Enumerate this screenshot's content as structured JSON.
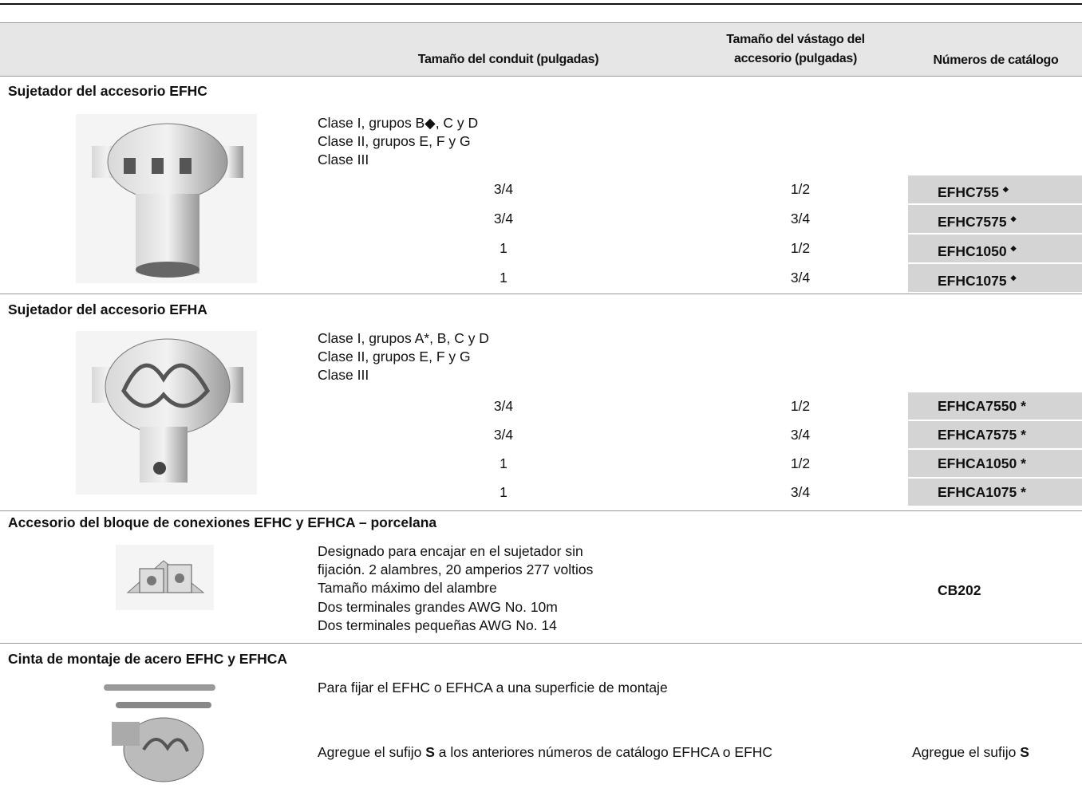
{
  "header": {
    "conduit": "Tamaño del conduit (pulgadas)",
    "stem": [
      "Tamaño del vástago del",
      "accesorio (pulgadas)"
    ],
    "catalog": "Números de catálogo"
  },
  "sections": [
    {
      "title": "Sujetador del accesorio EFHC",
      "description": [
        "Clase I, grupos B◆, C y D",
        "Clase II, grupos E, F y G",
        "Clase III"
      ],
      "rows": [
        {
          "conduit": "3/4",
          "stem": "1/2",
          "catalog": "EFHC755",
          "mark": "◆"
        },
        {
          "conduit": "3/4",
          "stem": "3/4",
          "catalog": "EFHC7575",
          "mark": "◆"
        },
        {
          "conduit": "1",
          "stem": "1/2",
          "catalog": "EFHC1050",
          "mark": "◆"
        },
        {
          "conduit": "1",
          "stem": "3/4",
          "catalog": "EFHC1075",
          "mark": "◆"
        }
      ]
    },
    {
      "title": "Sujetador del accesorio EFHA",
      "description": [
        "Clase I, grupos A*, B, C y D",
        "Clase II, grupos E, F y G",
        "Clase III"
      ],
      "rows": [
        {
          "conduit": "3/4",
          "stem": "1/2",
          "catalog": "EFHCA7550 *"
        },
        {
          "conduit": "3/4",
          "stem": "3/4",
          "catalog": "EFHCA7575 *"
        },
        {
          "conduit": "1",
          "stem": "1/2",
          "catalog": "EFHCA1050 *"
        },
        {
          "conduit": "1",
          "stem": "3/4",
          "catalog": "EFHCA1075 *"
        }
      ]
    },
    {
      "title": "Accesorio del bloque de conexiones EFHC y EFHCA – porcelana",
      "description": [
        "Designado para encajar en el sujetador sin",
        "fijación. 2 alambres, 20 amperios 277 voltios",
        "Tamaño máximo del alambre",
        "Dos terminales grandes AWG No. 10m",
        "Dos terminales pequeñas AWG No. 14"
      ],
      "catalog": "CB202"
    },
    {
      "title": "Cinta de montaje de acero EFHC y EFHCA",
      "description": [
        "Para fijar el EFHC o EFHCA a una superficie de montaje"
      ],
      "note": [
        "Agregue el sufijo ",
        "S",
        " a los anteriores números de catálogo EFHCA o EFHC"
      ],
      "catalog_note": [
        "Agregue el sufijo ",
        "S"
      ]
    }
  ]
}
